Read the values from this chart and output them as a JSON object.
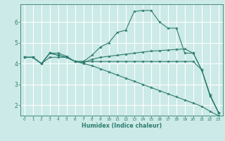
{
  "xlabel": "Humidex (Indice chaleur)",
  "bg_color": "#cceae7",
  "grid_color": "#ffffff",
  "line_color": "#2e7d70",
  "xlim": [
    -0.5,
    23.5
  ],
  "ylim": [
    1.5,
    6.85
  ],
  "xticks": [
    0,
    1,
    2,
    3,
    4,
    5,
    6,
    7,
    8,
    9,
    10,
    11,
    12,
    13,
    14,
    15,
    16,
    17,
    18,
    19,
    20,
    21,
    22,
    23
  ],
  "yticks": [
    2,
    3,
    4,
    5,
    6
  ],
  "series": [
    {
      "x": [
        0,
        1,
        2,
        3,
        4,
        5,
        6,
        7,
        8,
        9,
        10,
        11,
        12,
        13,
        14,
        15,
        16,
        17,
        18,
        19,
        20,
        21,
        22,
        23
      ],
      "y": [
        4.3,
        4.3,
        4.0,
        4.5,
        4.5,
        4.35,
        4.1,
        4.1,
        4.4,
        4.8,
        5.0,
        5.5,
        5.6,
        6.5,
        6.55,
        6.55,
        6.0,
        5.7,
        5.7,
        4.5,
        4.5,
        3.7,
        2.45,
        1.65
      ]
    },
    {
      "x": [
        0,
        1,
        2,
        3,
        4,
        5,
        6,
        7,
        8,
        9,
        10,
        11,
        12,
        13,
        14,
        15,
        16,
        17,
        18,
        19,
        20,
        21,
        22,
        23
      ],
      "y": [
        4.3,
        4.3,
        4.0,
        4.5,
        4.4,
        4.3,
        4.1,
        4.05,
        4.2,
        4.3,
        4.35,
        4.4,
        4.45,
        4.5,
        4.55,
        4.6,
        4.62,
        4.65,
        4.68,
        4.7,
        4.5,
        3.7,
        2.5,
        1.65
      ]
    },
    {
      "x": [
        0,
        1,
        2,
        3,
        4,
        5,
        6,
        7,
        8,
        9,
        10,
        11,
        12,
        13,
        14,
        15,
        16,
        17,
        18,
        19,
        20,
        21,
        22,
        23
      ],
      "y": [
        4.3,
        4.3,
        4.0,
        4.3,
        4.3,
        4.3,
        4.1,
        4.1,
        4.1,
        4.1,
        4.1,
        4.1,
        4.1,
        4.1,
        4.1,
        4.1,
        4.1,
        4.1,
        4.1,
        4.1,
        4.1,
        3.7,
        2.45,
        1.65
      ]
    },
    {
      "x": [
        0,
        1,
        2,
        3,
        4,
        5,
        6,
        7,
        8,
        9,
        10,
        11,
        12,
        13,
        14,
        15,
        16,
        17,
        18,
        19,
        20,
        21,
        22,
        23
      ],
      "y": [
        4.3,
        4.3,
        4.0,
        4.5,
        4.4,
        4.3,
        4.1,
        4.0,
        3.9,
        3.75,
        3.6,
        3.45,
        3.3,
        3.15,
        3.0,
        2.85,
        2.7,
        2.55,
        2.4,
        2.25,
        2.1,
        1.95,
        1.7,
        1.5
      ]
    }
  ]
}
